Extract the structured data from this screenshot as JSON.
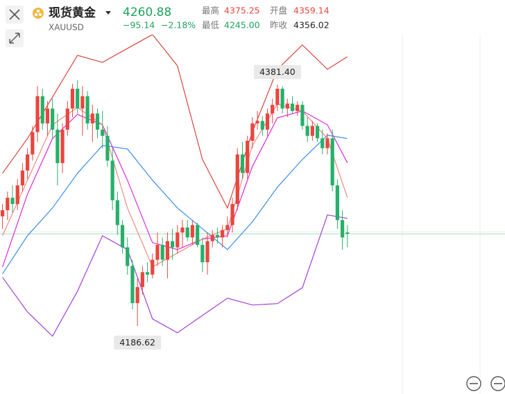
{
  "header": {
    "name": "现货黄金",
    "symbol": "XAUUSD",
    "price": "4260.88",
    "change": "−95.14",
    "change_pct": "−2.18%",
    "high_label": "最高",
    "high": "4375.25",
    "open_label": "开盘",
    "open": "4359.14",
    "low_label": "最低",
    "low": "4245.00",
    "prev_label": "昨收",
    "prev": "4356.02"
  },
  "chart_data": {
    "type": "candlestick",
    "xlim": [
      -0.5,
      70
    ],
    "ylim": [
      4130,
      4430
    ],
    "up_color": "#e8463f",
    "down_color": "#26b06a",
    "open": [
      4275,
      4280,
      4290,
      4285,
      4300,
      4312,
      4325,
      4343,
      4372,
      4350,
      4362,
      4345,
      4318,
      4345,
      4362,
      4378,
      4362,
      4372,
      4350,
      4358,
      4345,
      4340,
      4320,
      4288,
      4268,
      4250,
      4235,
      4205,
      4218,
      4230,
      4228,
      4240,
      4252,
      4240,
      4255,
      4250,
      4262,
      4266,
      4258,
      4268,
      4252,
      4238,
      4255,
      4260,
      4258,
      4264,
      4268,
      4285,
      4325,
      4310,
      4336,
      4350,
      4352,
      4345,
      4358,
      4365,
      4378,
      4362,
      4366,
      4360,
      4365,
      4348,
      4340,
      4348,
      4338,
      4330,
      4338,
      4300,
      4272,
      4262
    ],
    "high": [
      4285,
      4295,
      4300,
      4305,
      4318,
      4330,
      4348,
      4380,
      4378,
      4368,
      4370,
      4358,
      4350,
      4368,
      4382,
      4385,
      4380,
      4376,
      4365,
      4362,
      4360,
      4348,
      4330,
      4295,
      4272,
      4258,
      4240,
      4225,
      4235,
      4238,
      4245,
      4262,
      4258,
      4262,
      4265,
      4268,
      4272,
      4272,
      4272,
      4270,
      4258,
      4262,
      4264,
      4266,
      4268,
      4275,
      4290,
      4330,
      4335,
      4340,
      4355,
      4360,
      4356,
      4362,
      4370,
      4381.4,
      4380,
      4370,
      4372,
      4368,
      4368,
      4355,
      4352,
      4350,
      4345,
      4342,
      4345,
      4305,
      4280,
      4268
    ],
    "low": [
      4265,
      4272,
      4278,
      4280,
      4295,
      4305,
      4320,
      4335,
      4345,
      4340,
      4338,
      4300,
      4310,
      4340,
      4355,
      4358,
      4340,
      4345,
      4335,
      4338,
      4330,
      4315,
      4280,
      4260,
      4245,
      4228,
      4200,
      4186.62,
      4212,
      4222,
      4225,
      4235,
      4235,
      4225,
      4240,
      4245,
      4250,
      4255,
      4252,
      4250,
      4230,
      4228,
      4250,
      4253,
      4250,
      4258,
      4262,
      4280,
      4305,
      4305,
      4330,
      4345,
      4340,
      4340,
      4350,
      4360,
      4358,
      4355,
      4358,
      4356,
      4345,
      4335,
      4336,
      4335,
      4325,
      4325,
      4295,
      4265,
      4248,
      4250
    ],
    "close": [
      4280,
      4290,
      4285,
      4300,
      4312,
      4325,
      4343,
      4372,
      4350,
      4362,
      4345,
      4318,
      4345,
      4362,
      4378,
      4362,
      4372,
      4350,
      4358,
      4345,
      4340,
      4320,
      4288,
      4268,
      4250,
      4235,
      4205,
      4218,
      4230,
      4228,
      4240,
      4252,
      4240,
      4255,
      4250,
      4262,
      4266,
      4258,
      4268,
      4252,
      4238,
      4255,
      4260,
      4258,
      4264,
      4268,
      4285,
      4325,
      4310,
      4336,
      4350,
      4352,
      4345,
      4358,
      4365,
      4378,
      4362,
      4366,
      4360,
      4365,
      4348,
      4340,
      4348,
      4338,
      4330,
      4338,
      4300,
      4272,
      4258,
      4260.88
    ],
    "indicators": [
      {
        "color": "#d8453c",
        "x": [
          0,
          5,
          10,
          15,
          20,
          25,
          30,
          35,
          40,
          45,
          50,
          55,
          60,
          65,
          69
        ],
        "values": [
          4309.8,
          4337.8,
          4371.3,
          4404.9,
          4399.3,
          4410.5,
          4421.7,
          4396.5,
          4321.0,
          4281.8,
          4343.3,
          4393.7,
          4413.3,
          4393.7,
          4403.8
        ]
      },
      {
        "color": "#a23fd6",
        "x": [
          0,
          5,
          10,
          15,
          20,
          25,
          30,
          35,
          40,
          45,
          50,
          55,
          60,
          65,
          69
        ],
        "values": [
          4225.8,
          4197.9,
          4178.3,
          4214.6,
          4259.4,
          4248.2,
          4192.3,
          4181.1,
          4195.1,
          4209.0,
          4203.5,
          4204.6,
          4217.4,
          4276.2,
          4273.4
        ]
      },
      {
        "color": "#3a8ee6",
        "x": [
          0,
          5,
          10,
          15,
          20,
          25,
          30,
          35,
          40,
          45,
          50,
          55,
          60,
          65,
          69
        ],
        "values": [
          4228.6,
          4259.4,
          4281.8,
          4309.8,
          4332.2,
          4329.4,
          4304.2,
          4281.8,
          4265.0,
          4248.2,
          4270.6,
          4298.6,
          4320.9,
          4340.5,
          4337.8
        ]
      },
      {
        "color": "#e026dc",
        "x": [
          0,
          5,
          10,
          15,
          20,
          25,
          30,
          35,
          40,
          45,
          50,
          55,
          60,
          65,
          69
        ],
        "values": [
          4234.2,
          4293.0,
          4337.8,
          4357.3,
          4348.9,
          4304.2,
          4253.8,
          4248.2,
          4256.6,
          4259.4,
          4315.4,
          4354.5,
          4360.1,
          4348.9,
          4318.2
        ]
      },
      {
        "color": "#f08a80",
        "x": [
          0,
          5,
          10,
          15,
          20,
          25,
          30,
          35,
          40,
          45,
          50,
          55,
          60,
          65,
          69
        ],
        "values": [
          4259.4,
          4304.2,
          4348.9,
          4362.9,
          4348.9,
          4281.8,
          4234.2,
          4245.4,
          4256.6,
          4265.0,
          4332.2,
          4365.7,
          4360.1,
          4337.8,
          4290.2
        ]
      }
    ],
    "annotations": [
      {
        "text": "4381.40",
        "index": 55,
        "field": "high"
      },
      {
        "text": "4186.62",
        "index": 27,
        "field": "low"
      }
    ]
  }
}
